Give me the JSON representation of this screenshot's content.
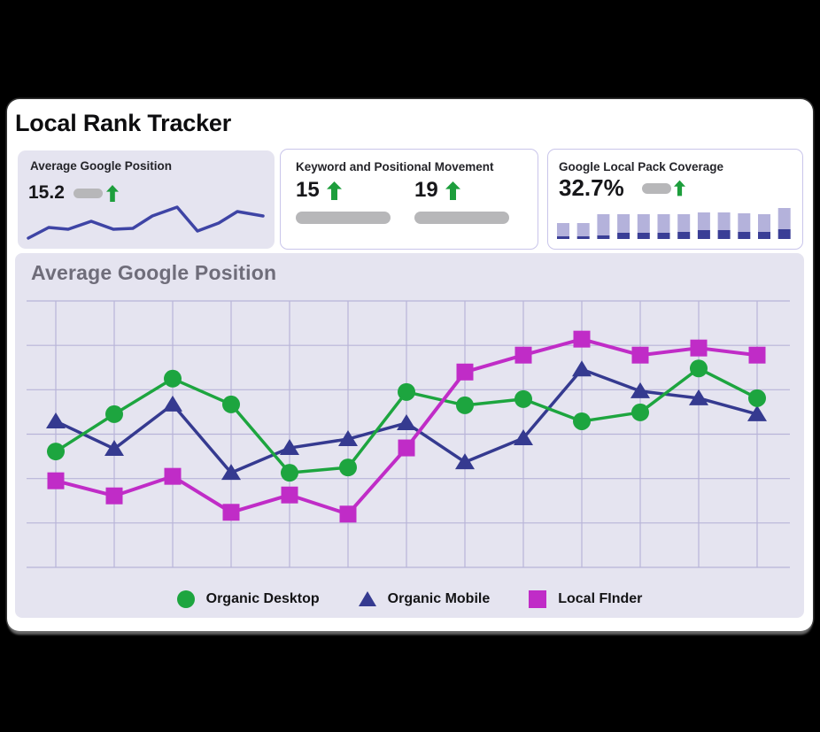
{
  "page": {
    "title": "Local Rank Tracker"
  },
  "stat_cards": {
    "average_position": {
      "label": "Average Google Position",
      "value": "15.2",
      "trend": "up",
      "sparkline_color": "#3e44a5",
      "sparkline_points": [
        [
          4,
          38
        ],
        [
          27,
          26
        ],
        [
          49,
          28
        ],
        [
          75,
          19
        ],
        [
          100,
          28
        ],
        [
          122,
          27
        ],
        [
          144,
          13
        ],
        [
          172,
          3
        ],
        [
          195,
          30
        ],
        [
          219,
          21
        ],
        [
          240,
          8
        ],
        [
          269,
          13
        ]
      ]
    },
    "keyword_movement": {
      "label": "Keyword and Positional Movement",
      "metrics": [
        {
          "value": "15",
          "trend": "up"
        },
        {
          "value": "19",
          "trend": "up"
        }
      ]
    },
    "local_pack": {
      "label": "Google Local Pack Coverage",
      "value": "32.7%",
      "trend": "up",
      "bar_color_top": "#b4b2db",
      "bar_color_bottom": "#3a3e96",
      "bars": [
        [
          18,
          3
        ],
        [
          18,
          3
        ],
        [
          28,
          4
        ],
        [
          28,
          7
        ],
        [
          28,
          7
        ],
        [
          28,
          7
        ],
        [
          28,
          8
        ],
        [
          30,
          10
        ],
        [
          30,
          10
        ],
        [
          29,
          8
        ],
        [
          28,
          8
        ],
        [
          35,
          11
        ]
      ]
    }
  },
  "main_chart": {
    "title": "Average Google Position"
  },
  "chart_data": {
    "type": "line",
    "title": "Average Google Position",
    "xlabel": "",
    "ylabel": "",
    "x": [
      1,
      2,
      3,
      4,
      5,
      6,
      7,
      8,
      9,
      10,
      11,
      12,
      13
    ],
    "x_tick_labels_visible": false,
    "y_tick_labels_visible": false,
    "ylim": [
      0,
      6
    ],
    "grid": true,
    "legend_position": "bottom",
    "series": [
      {
        "name": "Organic Desktop",
        "marker": "circle",
        "color": "#1da53f",
        "values": [
          2.61,
          3.45,
          4.25,
          3.67,
          2.13,
          2.25,
          3.95,
          3.65,
          3.79,
          3.29,
          3.49,
          4.48,
          3.81
        ]
      },
      {
        "name": "Organic Mobile",
        "marker": "triangle",
        "color": "#353a90",
        "values": [
          3.29,
          2.67,
          3.67,
          2.13,
          2.69,
          2.89,
          3.25,
          2.37,
          2.91,
          4.46,
          3.97,
          3.81,
          3.45
        ]
      },
      {
        "name": "Local FInder",
        "marker": "square",
        "color": "#c02cc7",
        "values": [
          1.95,
          1.61,
          2.05,
          1.24,
          1.63,
          1.2,
          2.69,
          4.4,
          4.78,
          5.14,
          4.78,
          4.94,
          4.78
        ]
      }
    ],
    "trend_arrow_color": "#1d9e3c"
  }
}
